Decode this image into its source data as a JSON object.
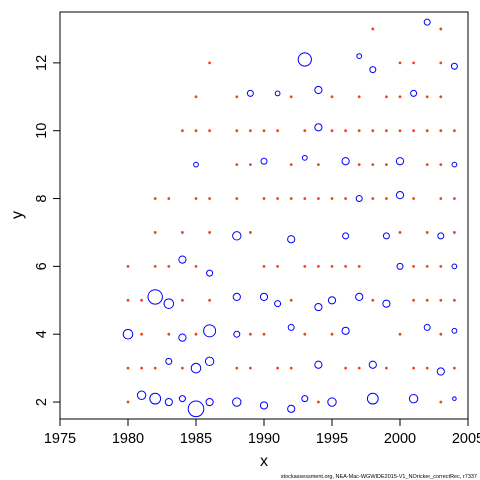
{
  "chart_data": {
    "type": "scatter",
    "title": "",
    "xlabel": "x",
    "ylabel": "y",
    "xlim": [
      1975,
      2005
    ],
    "ylim": [
      1.5,
      13.5
    ],
    "xticks": [
      "1975",
      "1980",
      "1985",
      "1990",
      "1995",
      "2000",
      "2005"
    ],
    "yticks": [
      "2",
      "4",
      "6",
      "8",
      "10",
      "12"
    ],
    "grid": false,
    "legend": "none",
    "colors": {
      "positive": "#0000ff",
      "negative": "#ee4422"
    },
    "series": [
      {
        "marker": "open-circle",
        "values": [
          {
            "x": 1980,
            "y": 4,
            "r": 0.8
          },
          {
            "x": 1981,
            "y": 2.2,
            "r": 0.7
          },
          {
            "x": 1982,
            "y": 5.1,
            "r": 1.2
          },
          {
            "x": 1982,
            "y": 2.1,
            "r": 0.9
          },
          {
            "x": 1983,
            "y": 4.9,
            "r": 0.8
          },
          {
            "x": 1983,
            "y": 2,
            "r": 0.6
          },
          {
            "x": 1983,
            "y": 3.2,
            "r": 0.5
          },
          {
            "x": 1984,
            "y": 6.2,
            "r": 0.6
          },
          {
            "x": 1984,
            "y": 3.9,
            "r": 0.6
          },
          {
            "x": 1984,
            "y": 2.1,
            "r": 0.5
          },
          {
            "x": 1985,
            "y": 3,
            "r": 0.8
          },
          {
            "x": 1985,
            "y": 1.8,
            "r": 1.3
          },
          {
            "x": 1985,
            "y": 9,
            "r": 0.4
          },
          {
            "x": 1986,
            "y": 4.1,
            "r": 1
          },
          {
            "x": 1986,
            "y": 3.2,
            "r": 0.7
          },
          {
            "x": 1986,
            "y": 2,
            "r": 0.6
          },
          {
            "x": 1986,
            "y": 5.8,
            "r": 0.5
          },
          {
            "x": 1988,
            "y": 6.9,
            "r": 0.7
          },
          {
            "x": 1988,
            "y": 5.1,
            "r": 0.6
          },
          {
            "x": 1988,
            "y": 2,
            "r": 0.7
          },
          {
            "x": 1988,
            "y": 4,
            "r": 0.5
          },
          {
            "x": 1989,
            "y": 11.1,
            "r": 0.5
          },
          {
            "x": 1990,
            "y": 5.1,
            "r": 0.6
          },
          {
            "x": 1990,
            "y": 9.1,
            "r": 0.5
          },
          {
            "x": 1990,
            "y": 1.9,
            "r": 0.6
          },
          {
            "x": 1991,
            "y": 11.1,
            "r": 0.4
          },
          {
            "x": 1991,
            "y": 4.9,
            "r": 0.5
          },
          {
            "x": 1992,
            "y": 6.8,
            "r": 0.6
          },
          {
            "x": 1992,
            "y": 1.8,
            "r": 0.6
          },
          {
            "x": 1992,
            "y": 4.2,
            "r": 0.5
          },
          {
            "x": 1993,
            "y": 12.1,
            "r": 1.1
          },
          {
            "x": 1993,
            "y": 9.2,
            "r": 0.4
          },
          {
            "x": 1993,
            "y": 2.1,
            "r": 0.5
          },
          {
            "x": 1994,
            "y": 11.2,
            "r": 0.6
          },
          {
            "x": 1994,
            "y": 10.1,
            "r": 0.6
          },
          {
            "x": 1994,
            "y": 4.8,
            "r": 0.6
          },
          {
            "x": 1994,
            "y": 3.1,
            "r": 0.6
          },
          {
            "x": 1995,
            "y": 5,
            "r": 0.6
          },
          {
            "x": 1995,
            "y": 2,
            "r": 0.7
          },
          {
            "x": 1996,
            "y": 9.1,
            "r": 0.6
          },
          {
            "x": 1996,
            "y": 6.9,
            "r": 0.5
          },
          {
            "x": 1996,
            "y": 4.1,
            "r": 0.6
          },
          {
            "x": 1997,
            "y": 12.2,
            "r": 0.4
          },
          {
            "x": 1997,
            "y": 8,
            "r": 0.5
          },
          {
            "x": 1997,
            "y": 5.1,
            "r": 0.6
          },
          {
            "x": 1998,
            "y": 11.8,
            "r": 0.5
          },
          {
            "x": 1998,
            "y": 3.1,
            "r": 0.6
          },
          {
            "x": 1998,
            "y": 2.1,
            "r": 0.9
          },
          {
            "x": 1999,
            "y": 6.9,
            "r": 0.5
          },
          {
            "x": 1999,
            "y": 4.9,
            "r": 0.6
          },
          {
            "x": 2000,
            "y": 9.1,
            "r": 0.6
          },
          {
            "x": 2000,
            "y": 8.1,
            "r": 0.6
          },
          {
            "x": 2000,
            "y": 6,
            "r": 0.5
          },
          {
            "x": 2001,
            "y": 11.1,
            "r": 0.5
          },
          {
            "x": 2001,
            "y": 2.1,
            "r": 0.7
          },
          {
            "x": 2002,
            "y": 13.2,
            "r": 0.5
          },
          {
            "x": 2002,
            "y": 4.2,
            "r": 0.5
          },
          {
            "x": 2003,
            "y": 6.9,
            "r": 0.5
          },
          {
            "x": 2003,
            "y": 2.9,
            "r": 0.6
          },
          {
            "x": 2004,
            "y": 11.9,
            "r": 0.5
          },
          {
            "x": 2004,
            "y": 9,
            "r": 0.4
          },
          {
            "x": 2004,
            "y": 6,
            "r": 0.4
          },
          {
            "x": 2004,
            "y": 4.1,
            "r": 0.4
          },
          {
            "x": 2004,
            "y": 2.1,
            "r": 0.3
          }
        ]
      },
      {
        "marker": "filled-dot",
        "values": [
          {
            "x": 1980,
            "y": 6
          },
          {
            "x": 1980,
            "y": 5
          },
          {
            "x": 1980,
            "y": 3
          },
          {
            "x": 1980,
            "y": 2
          },
          {
            "x": 1981,
            "y": 5
          },
          {
            "x": 1981,
            "y": 3
          },
          {
            "x": 1981,
            "y": 4
          },
          {
            "x": 1982,
            "y": 8
          },
          {
            "x": 1982,
            "y": 7
          },
          {
            "x": 1982,
            "y": 6
          },
          {
            "x": 1982,
            "y": 3
          },
          {
            "x": 1983,
            "y": 8
          },
          {
            "x": 1983,
            "y": 6
          },
          {
            "x": 1983,
            "y": 4
          },
          {
            "x": 1984,
            "y": 10
          },
          {
            "x": 1984,
            "y": 7
          },
          {
            "x": 1984,
            "y": 5
          },
          {
            "x": 1984,
            "y": 3
          },
          {
            "x": 1985,
            "y": 11
          },
          {
            "x": 1985,
            "y": 10
          },
          {
            "x": 1985,
            "y": 8
          },
          {
            "x": 1985,
            "y": 6
          },
          {
            "x": 1985,
            "y": 4
          },
          {
            "x": 1986,
            "y": 12
          },
          {
            "x": 1986,
            "y": 10
          },
          {
            "x": 1986,
            "y": 8
          },
          {
            "x": 1986,
            "y": 7
          },
          {
            "x": 1986,
            "y": 5
          },
          {
            "x": 1988,
            "y": 11
          },
          {
            "x": 1988,
            "y": 10
          },
          {
            "x": 1988,
            "y": 9
          },
          {
            "x": 1988,
            "y": 8
          },
          {
            "x": 1988,
            "y": 3
          },
          {
            "x": 1989,
            "y": 10
          },
          {
            "x": 1989,
            "y": 9
          },
          {
            "x": 1989,
            "y": 7
          },
          {
            "x": 1989,
            "y": 4
          },
          {
            "x": 1989,
            "y": 3
          },
          {
            "x": 1990,
            "y": 10
          },
          {
            "x": 1990,
            "y": 8
          },
          {
            "x": 1990,
            "y": 6
          },
          {
            "x": 1990,
            "y": 4
          },
          {
            "x": 1991,
            "y": 10
          },
          {
            "x": 1991,
            "y": 8
          },
          {
            "x": 1991,
            "y": 6
          },
          {
            "x": 1991,
            "y": 3
          },
          {
            "x": 1992,
            "y": 11
          },
          {
            "x": 1992,
            "y": 9
          },
          {
            "x": 1992,
            "y": 8
          },
          {
            "x": 1992,
            "y": 5
          },
          {
            "x": 1992,
            "y": 3
          },
          {
            "x": 1993,
            "y": 10
          },
          {
            "x": 1993,
            "y": 8
          },
          {
            "x": 1993,
            "y": 6
          },
          {
            "x": 1993,
            "y": 4
          },
          {
            "x": 1994,
            "y": 9
          },
          {
            "x": 1994,
            "y": 8
          },
          {
            "x": 1994,
            "y": 6
          },
          {
            "x": 1994,
            "y": 2
          },
          {
            "x": 1995,
            "y": 11
          },
          {
            "x": 1995,
            "y": 10
          },
          {
            "x": 1995,
            "y": 8
          },
          {
            "x": 1995,
            "y": 6
          },
          {
            "x": 1995,
            "y": 4
          },
          {
            "x": 1996,
            "y": 10
          },
          {
            "x": 1996,
            "y": 8
          },
          {
            "x": 1996,
            "y": 6
          },
          {
            "x": 1996,
            "y": 3
          },
          {
            "x": 1997,
            "y": 11
          },
          {
            "x": 1997,
            "y": 10
          },
          {
            "x": 1997,
            "y": 9
          },
          {
            "x": 1997,
            "y": 6
          },
          {
            "x": 1997,
            "y": 3
          },
          {
            "x": 1998,
            "y": 13
          },
          {
            "x": 1998,
            "y": 10
          },
          {
            "x": 1998,
            "y": 9
          },
          {
            "x": 1998,
            "y": 8
          },
          {
            "x": 1998,
            "y": 5
          },
          {
            "x": 1999,
            "y": 11
          },
          {
            "x": 1999,
            "y": 10
          },
          {
            "x": 1999,
            "y": 9
          },
          {
            "x": 1999,
            "y": 8
          },
          {
            "x": 1999,
            "y": 3
          },
          {
            "x": 2000,
            "y": 12
          },
          {
            "x": 2000,
            "y": 11
          },
          {
            "x": 2000,
            "y": 10
          },
          {
            "x": 2000,
            "y": 7
          },
          {
            "x": 2000,
            "y": 4
          },
          {
            "x": 2001,
            "y": 12
          },
          {
            "x": 2001,
            "y": 10
          },
          {
            "x": 2001,
            "y": 8
          },
          {
            "x": 2001,
            "y": 6
          },
          {
            "x": 2001,
            "y": 5
          },
          {
            "x": 2001,
            "y": 3
          },
          {
            "x": 2002,
            "y": 11
          },
          {
            "x": 2002,
            "y": 10
          },
          {
            "x": 2002,
            "y": 9
          },
          {
            "x": 2002,
            "y": 7
          },
          {
            "x": 2002,
            "y": 6
          },
          {
            "x": 2002,
            "y": 5
          },
          {
            "x": 2002,
            "y": 3
          },
          {
            "x": 2003,
            "y": 13
          },
          {
            "x": 2003,
            "y": 12
          },
          {
            "x": 2003,
            "y": 11
          },
          {
            "x": 2003,
            "y": 10
          },
          {
            "x": 2003,
            "y": 9
          },
          {
            "x": 2003,
            "y": 8
          },
          {
            "x": 2003,
            "y": 6
          },
          {
            "x": 2003,
            "y": 5
          },
          {
            "x": 2003,
            "y": 4
          },
          {
            "x": 2003,
            "y": 2
          },
          {
            "x": 2004,
            "y": 10
          },
          {
            "x": 2004,
            "y": 8
          },
          {
            "x": 2004,
            "y": 7
          },
          {
            "x": 2004,
            "y": 5
          },
          {
            "x": 2004,
            "y": 3
          }
        ]
      }
    ]
  },
  "footer_text": "stockassessment.org, NEA-Mac-WGWIDE2015-V1_NOricker_correctRec, r7337"
}
